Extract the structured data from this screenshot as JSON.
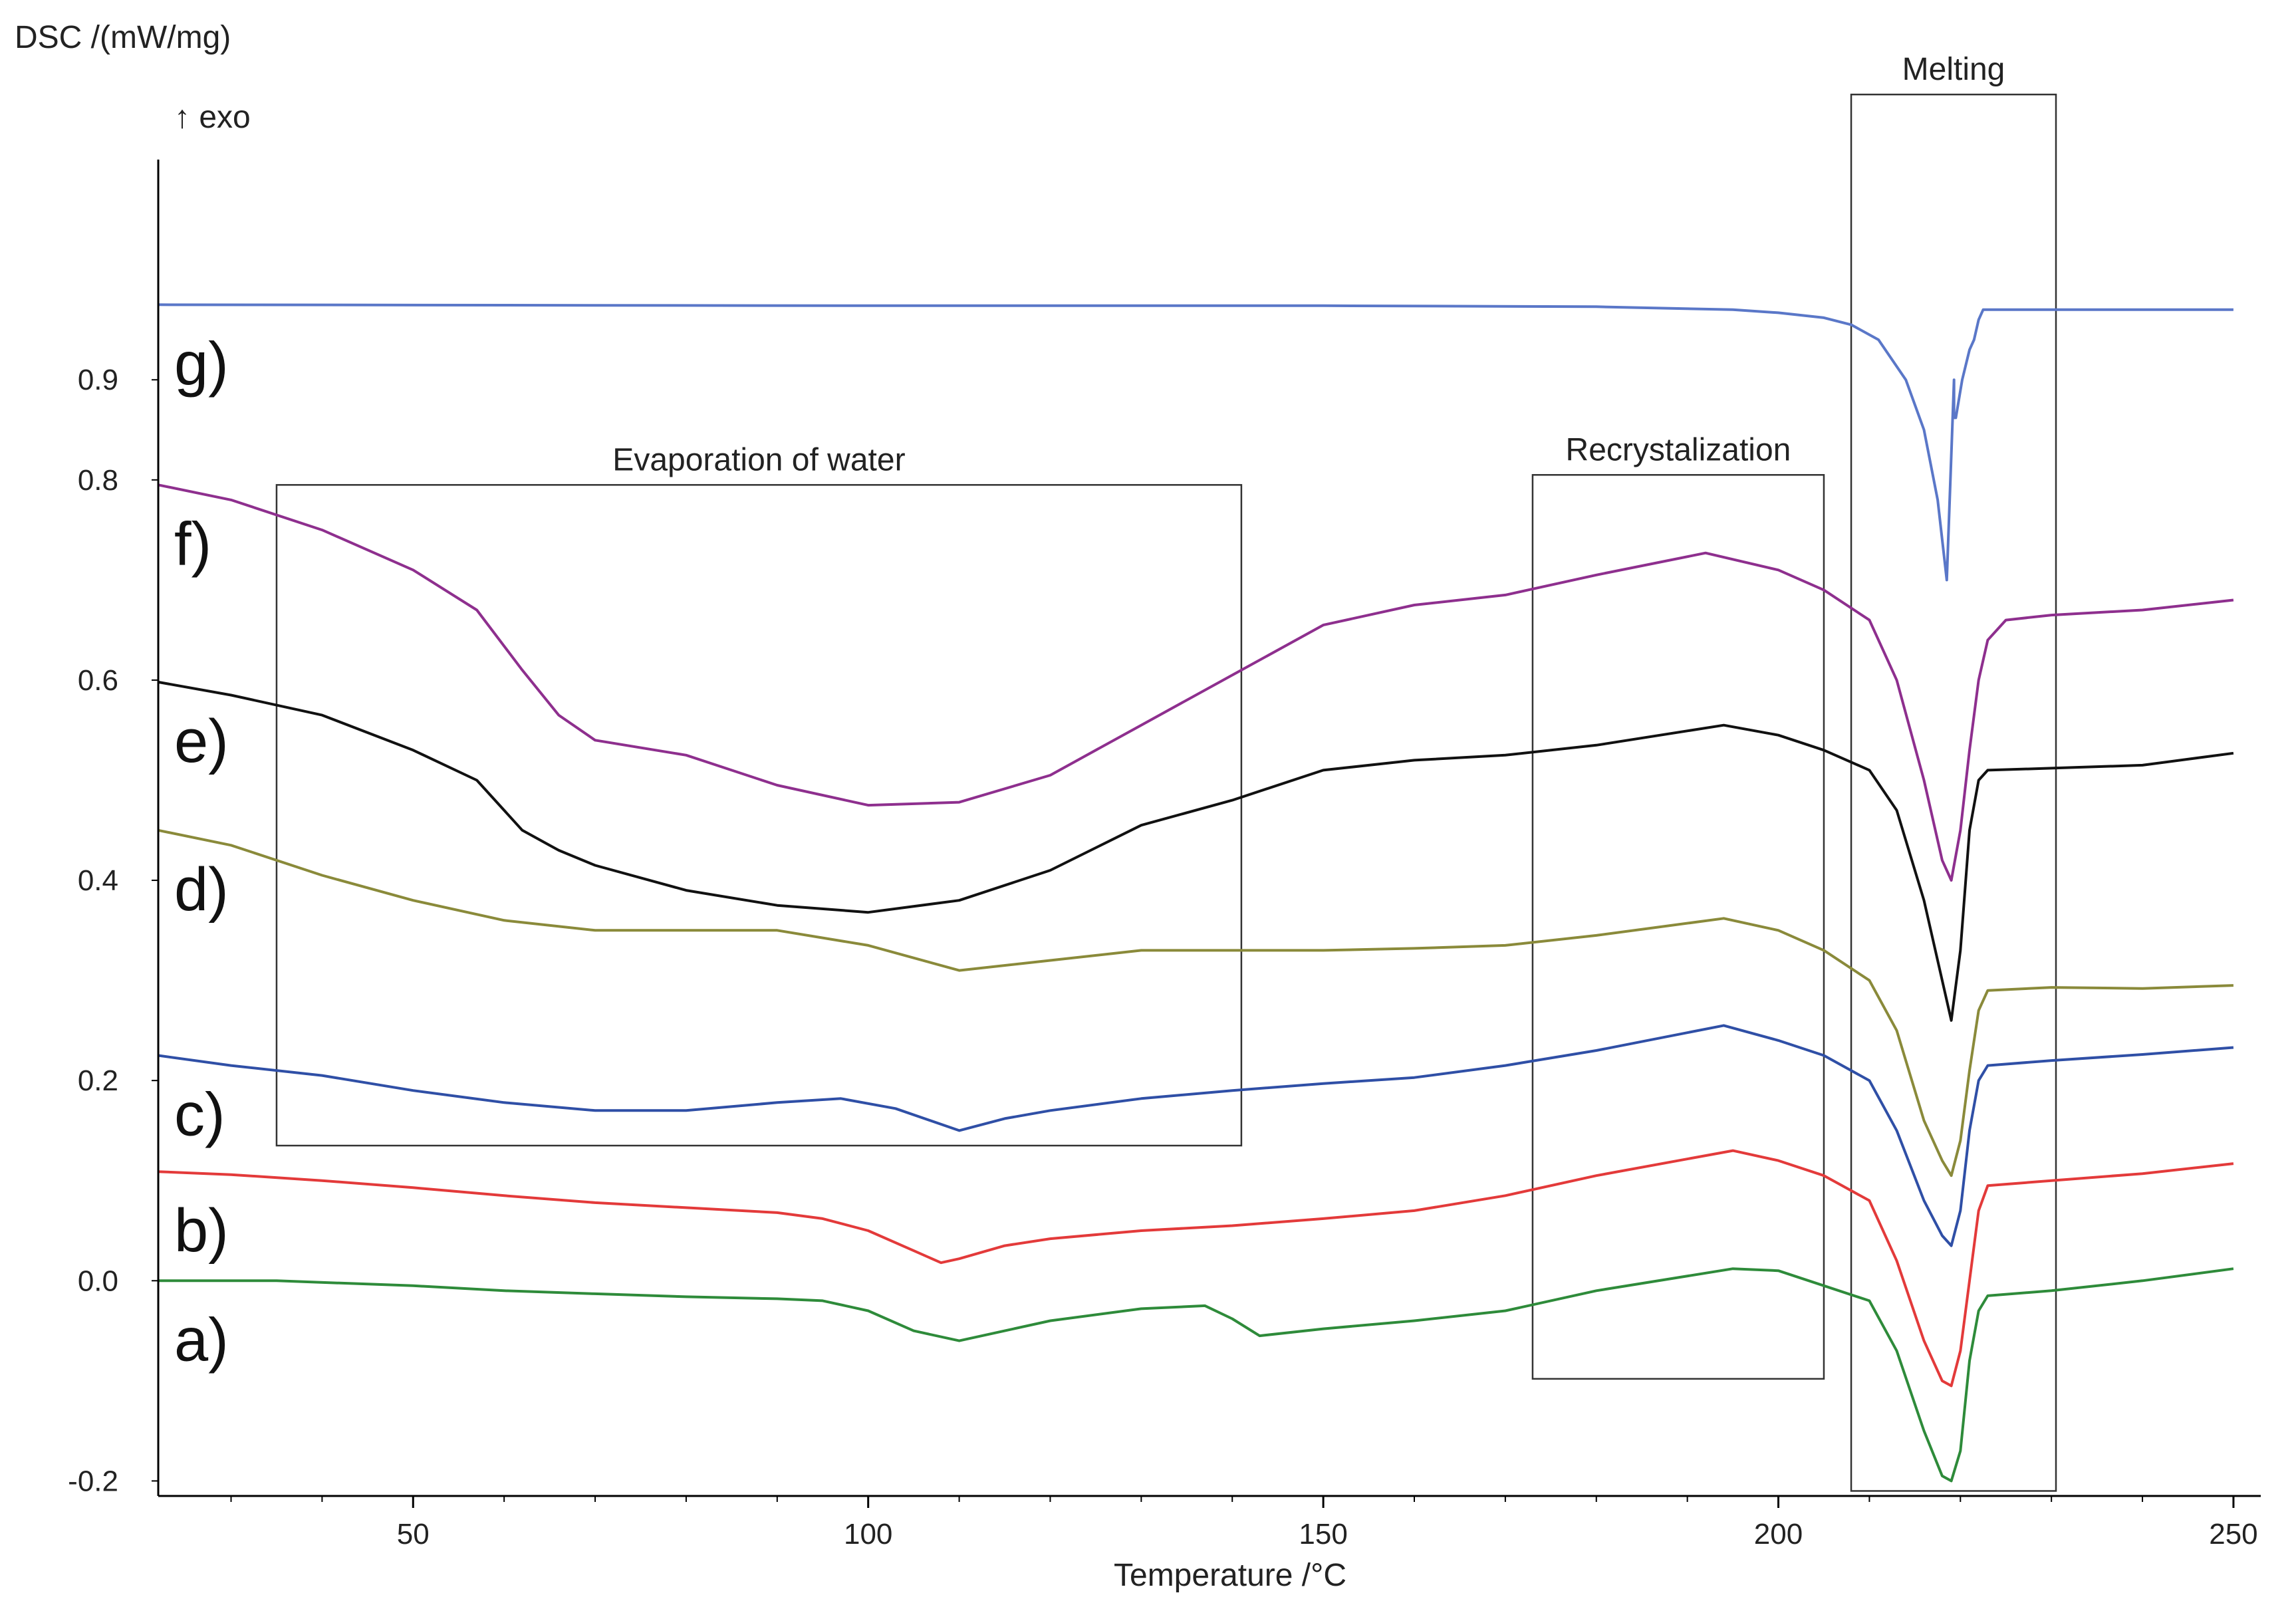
{
  "chart_data": {
    "type": "line",
    "title": "",
    "ylabel": "DSC /(mW/mg)",
    "exo_label": "↑ exo",
    "xlabel": "Temperature /°C",
    "xlim": [
      22,
      253
    ],
    "ylim": [
      -0.215,
      1.12
    ],
    "x_ticks": [
      50,
      100,
      150,
      200,
      250
    ],
    "y_ticks": [
      {
        "value": 0.9,
        "label": "0.9"
      },
      {
        "value": 0.8,
        "label": "0.8"
      },
      {
        "value": 0.6,
        "label": "0.6"
      },
      {
        "value": 0.4,
        "label": "0.4"
      },
      {
        "value": 0.2,
        "label": "0.2"
      },
      {
        "value": 0.0,
        "label": "0.0"
      },
      {
        "value": -0.2,
        "label": "-0.2"
      }
    ],
    "grid": false,
    "regions": [
      {
        "label": "Evaporation of water",
        "x_range": [
          35,
          141
        ],
        "y_range": [
          0.135,
          0.795
        ]
      },
      {
        "label": "Recrystalization",
        "x_range": [
          173,
          205
        ],
        "y_range": [
          -0.098,
          0.805
        ]
      },
      {
        "label": "Melting",
        "x_range": [
          208,
          230.5
        ],
        "y_range": [
          -0.21,
          1.185
        ]
      }
    ],
    "series": [
      {
        "name": "g)",
        "color": "#5a77c8",
        "points": [
          [
            22,
            0.975
          ],
          [
            100,
            0.974
          ],
          [
            150,
            0.974
          ],
          [
            180,
            0.973
          ],
          [
            195,
            0.97
          ],
          [
            200,
            0.967
          ],
          [
            205,
            0.962
          ],
          [
            208,
            0.955
          ],
          [
            211,
            0.94
          ],
          [
            214,
            0.9
          ],
          [
            216,
            0.85
          ],
          [
            217.5,
            0.78
          ],
          [
            218.5,
            0.7
          ],
          [
            219.3,
            0.9
          ],
          [
            219.3,
            0.862
          ],
          [
            219.5,
            0.862
          ],
          [
            220.2,
            0.9
          ],
          [
            221,
            0.93
          ],
          [
            221.5,
            0.94
          ],
          [
            222,
            0.96
          ],
          [
            222.5,
            0.97
          ],
          [
            223,
            0.97
          ],
          [
            250,
            0.97
          ]
        ]
      },
      {
        "name": "f)",
        "color": "#8e2f8e",
        "points": [
          [
            22,
            0.795
          ],
          [
            30,
            0.78
          ],
          [
            40,
            0.75
          ],
          [
            50,
            0.71
          ],
          [
            57,
            0.67
          ],
          [
            62,
            0.61
          ],
          [
            66,
            0.565
          ],
          [
            70,
            0.54
          ],
          [
            80,
            0.525
          ],
          [
            90,
            0.495
          ],
          [
            100,
            0.475
          ],
          [
            110,
            0.478
          ],
          [
            120,
            0.505
          ],
          [
            130,
            0.555
          ],
          [
            140,
            0.605
          ],
          [
            150,
            0.655
          ],
          [
            160,
            0.675
          ],
          [
            170,
            0.685
          ],
          [
            180,
            0.705
          ],
          [
            192,
            0.727
          ],
          [
            200,
            0.71
          ],
          [
            205,
            0.69
          ],
          [
            210,
            0.66
          ],
          [
            213,
            0.6
          ],
          [
            216,
            0.5
          ],
          [
            218,
            0.42
          ],
          [
            219,
            0.4
          ],
          [
            220,
            0.45
          ],
          [
            221,
            0.53
          ],
          [
            222,
            0.6
          ],
          [
            223,
            0.64
          ],
          [
            225,
            0.66
          ],
          [
            230,
            0.665
          ],
          [
            240,
            0.67
          ],
          [
            250,
            0.68
          ]
        ]
      },
      {
        "name": "e)",
        "color": "#111111",
        "points": [
          [
            22,
            0.598
          ],
          [
            30,
            0.585
          ],
          [
            40,
            0.565
          ],
          [
            50,
            0.53
          ],
          [
            57,
            0.5
          ],
          [
            62,
            0.45
          ],
          [
            66,
            0.43
          ],
          [
            70,
            0.415
          ],
          [
            80,
            0.39
          ],
          [
            90,
            0.375
          ],
          [
            100,
            0.368
          ],
          [
            110,
            0.38
          ],
          [
            120,
            0.41
          ],
          [
            130,
            0.455
          ],
          [
            140,
            0.48
          ],
          [
            150,
            0.51
          ],
          [
            160,
            0.52
          ],
          [
            170,
            0.525
          ],
          [
            180,
            0.535
          ],
          [
            194,
            0.555
          ],
          [
            200,
            0.545
          ],
          [
            205,
            0.53
          ],
          [
            210,
            0.51
          ],
          [
            213,
            0.47
          ],
          [
            216,
            0.38
          ],
          [
            218,
            0.3
          ],
          [
            219,
            0.26
          ],
          [
            220,
            0.33
          ],
          [
            221,
            0.45
          ],
          [
            222,
            0.5
          ],
          [
            223,
            0.51
          ],
          [
            230,
            0.512
          ],
          [
            240,
            0.515
          ],
          [
            250,
            0.527
          ]
        ]
      },
      {
        "name": "d)",
        "color": "#8a8a3a",
        "points": [
          [
            22,
            0.45
          ],
          [
            30,
            0.435
          ],
          [
            40,
            0.405
          ],
          [
            50,
            0.38
          ],
          [
            60,
            0.36
          ],
          [
            70,
            0.35
          ],
          [
            80,
            0.35
          ],
          [
            90,
            0.35
          ],
          [
            100,
            0.335
          ],
          [
            110,
            0.31
          ],
          [
            120,
            0.32
          ],
          [
            130,
            0.33
          ],
          [
            140,
            0.33
          ],
          [
            150,
            0.33
          ],
          [
            160,
            0.332
          ],
          [
            170,
            0.335
          ],
          [
            180,
            0.345
          ],
          [
            194,
            0.362
          ],
          [
            200,
            0.35
          ],
          [
            205,
            0.33
          ],
          [
            210,
            0.3
          ],
          [
            213,
            0.25
          ],
          [
            216,
            0.16
          ],
          [
            218,
            0.12
          ],
          [
            219,
            0.105
          ],
          [
            220,
            0.14
          ],
          [
            221,
            0.21
          ],
          [
            222,
            0.27
          ],
          [
            223,
            0.29
          ],
          [
            230,
            0.293
          ],
          [
            240,
            0.292
          ],
          [
            250,
            0.295
          ]
        ]
      },
      {
        "name": "c)",
        "color": "#2f4fa6",
        "points": [
          [
            22,
            0.225
          ],
          [
            30,
            0.215
          ],
          [
            40,
            0.205
          ],
          [
            50,
            0.19
          ],
          [
            60,
            0.178
          ],
          [
            70,
            0.17
          ],
          [
            80,
            0.17
          ],
          [
            90,
            0.178
          ],
          [
            97,
            0.182
          ],
          [
            103,
            0.172
          ],
          [
            110,
            0.15
          ],
          [
            115,
            0.162
          ],
          [
            120,
            0.17
          ],
          [
            130,
            0.182
          ],
          [
            140,
            0.19
          ],
          [
            150,
            0.197
          ],
          [
            160,
            0.203
          ],
          [
            170,
            0.215
          ],
          [
            180,
            0.23
          ],
          [
            194,
            0.255
          ],
          [
            200,
            0.24
          ],
          [
            205,
            0.225
          ],
          [
            210,
            0.2
          ],
          [
            213,
            0.15
          ],
          [
            216,
            0.08
          ],
          [
            218,
            0.045
          ],
          [
            219,
            0.035
          ],
          [
            220,
            0.07
          ],
          [
            221,
            0.15
          ],
          [
            222,
            0.2
          ],
          [
            223,
            0.215
          ],
          [
            230,
            0.22
          ],
          [
            240,
            0.226
          ],
          [
            250,
            0.233
          ]
        ]
      },
      {
        "name": "b)",
        "color": "#e33a3a",
        "points": [
          [
            22,
            0.109
          ],
          [
            30,
            0.106
          ],
          [
            40,
            0.1
          ],
          [
            50,
            0.093
          ],
          [
            60,
            0.085
          ],
          [
            70,
            0.078
          ],
          [
            80,
            0.073
          ],
          [
            90,
            0.068
          ],
          [
            95,
            0.062
          ],
          [
            100,
            0.05
          ],
          [
            105,
            0.03
          ],
          [
            108,
            0.018
          ],
          [
            110,
            0.022
          ],
          [
            115,
            0.035
          ],
          [
            120,
            0.042
          ],
          [
            130,
            0.05
          ],
          [
            140,
            0.055
          ],
          [
            150,
            0.062
          ],
          [
            160,
            0.07
          ],
          [
            170,
            0.085
          ],
          [
            180,
            0.105
          ],
          [
            195,
            0.13
          ],
          [
            200,
            0.12
          ],
          [
            205,
            0.105
          ],
          [
            210,
            0.08
          ],
          [
            213,
            0.02
          ],
          [
            216,
            -0.06
          ],
          [
            218,
            -0.1
          ],
          [
            219,
            -0.105
          ],
          [
            220,
            -0.07
          ],
          [
            221,
            0.0
          ],
          [
            222,
            0.07
          ],
          [
            223,
            0.095
          ],
          [
            230,
            0.1
          ],
          [
            240,
            0.107
          ],
          [
            250,
            0.117
          ]
        ]
      },
      {
        "name": "a)",
        "color": "#2e8b3a",
        "points": [
          [
            22,
            0.0
          ],
          [
            35,
            0.0
          ],
          [
            50,
            -0.005
          ],
          [
            60,
            -0.01
          ],
          [
            70,
            -0.013
          ],
          [
            80,
            -0.016
          ],
          [
            90,
            -0.018
          ],
          [
            95,
            -0.02
          ],
          [
            100,
            -0.03
          ],
          [
            105,
            -0.05
          ],
          [
            110,
            -0.06
          ],
          [
            115,
            -0.05
          ],
          [
            120,
            -0.04
          ],
          [
            130,
            -0.028
          ],
          [
            137,
            -0.025
          ],
          [
            140,
            -0.038
          ],
          [
            143,
            -0.055
          ],
          [
            150,
            -0.048
          ],
          [
            160,
            -0.04
          ],
          [
            170,
            -0.03
          ],
          [
            180,
            -0.01
          ],
          [
            195,
            0.012
          ],
          [
            200,
            0.01
          ],
          [
            205,
            -0.005
          ],
          [
            210,
            -0.02
          ],
          [
            213,
            -0.07
          ],
          [
            216,
            -0.15
          ],
          [
            218,
            -0.195
          ],
          [
            219,
            -0.2
          ],
          [
            220,
            -0.17
          ],
          [
            221,
            -0.08
          ],
          [
            222,
            -0.03
          ],
          [
            223,
            -0.015
          ],
          [
            230,
            -0.01
          ],
          [
            240,
            0.0
          ],
          [
            250,
            0.012
          ]
        ]
      }
    ]
  }
}
